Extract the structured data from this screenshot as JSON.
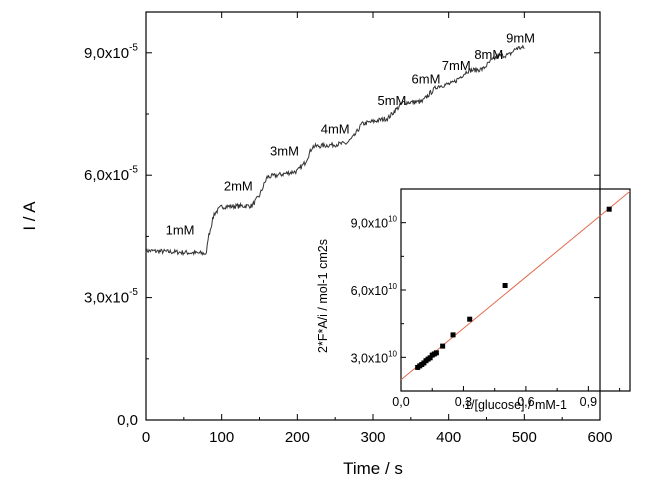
{
  "chart_data": [
    {
      "type": "line",
      "xlabel": "Time / s",
      "ylabel": "I / A",
      "xlim": [
        0,
        600
      ],
      "ylim": [
        0,
        0.0001
      ],
      "xticks": [
        0,
        100,
        200,
        300,
        400,
        500,
        600
      ],
      "xtick_labels": [
        "0",
        "100",
        "200",
        "300",
        "400",
        "500",
        "600"
      ],
      "yticks": [
        0,
        3e-05,
        6e-05,
        9e-05
      ],
      "ytick_labels": [
        {
          "mant": "0,0",
          "exp": ""
        },
        {
          "mant": "3,0x10",
          "exp": "-5"
        },
        {
          "mant": "6,0x10",
          "exp": "-5"
        },
        {
          "mant": "9,0x10",
          "exp": "-5"
        }
      ],
      "series": [
        {
          "x": [
            0,
            80,
            82,
            90,
            100,
            140,
            150,
            160,
            200,
            210,
            220,
            265,
            275,
            285,
            320,
            330,
            340,
            365,
            375,
            385,
            405,
            415,
            425,
            445,
            455,
            465,
            480,
            490,
            500
          ],
          "y": [
            4.15e-05,
            4.08e-05,
            4.45e-05,
            5.05e-05,
            5.23e-05,
            5.25e-05,
            5.5e-05,
            5.95e-05,
            6.1e-05,
            6.3e-05,
            6.7e-05,
            6.78e-05,
            6.95e-05,
            7.25e-05,
            7.4e-05,
            7.6e-05,
            7.78e-05,
            7.8e-05,
            8e-05,
            8.18e-05,
            8.25e-05,
            8.4e-05,
            8.56e-05,
            8.6e-05,
            8.78e-05,
            8.92e-05,
            8.95e-05,
            9.12e-05,
            9.12e-05
          ]
        }
      ],
      "annotations": [
        {
          "text": "1mM",
          "x": 45,
          "y": 4.55e-05
        },
        {
          "text": "2mM",
          "x": 122,
          "y": 5.62e-05
        },
        {
          "text": "3mM",
          "x": 183,
          "y": 6.48e-05
        },
        {
          "text": "4mM",
          "x": 250,
          "y": 7.02e-05
        },
        {
          "text": "5mM",
          "x": 325,
          "y": 7.72e-05
        },
        {
          "text": "6mM",
          "x": 370,
          "y": 8.25e-05
        },
        {
          "text": "7mM",
          "x": 410,
          "y": 8.58e-05
        },
        {
          "text": "8mM",
          "x": 453,
          "y": 8.85e-05
        },
        {
          "text": "9mM",
          "x": 495,
          "y": 9.25e-05
        }
      ]
    },
    {
      "type": "scatter",
      "xlabel": "1/[glucose] / mM-1",
      "ylabel": "2*F*A/i / mol-1 cm2s",
      "xlim": [
        0,
        1.1
      ],
      "ylim": [
        15000000000,
        105000000000
      ],
      "xticks": [
        0,
        0.3,
        0.6,
        0.9
      ],
      "xtick_labels": [
        "0,0",
        "0,3",
        "0,6",
        "0,9"
      ],
      "yticks": [
        30000000000,
        60000000000,
        90000000000
      ],
      "ytick_labels": [
        {
          "mant": "3,0x10",
          "exp": "10"
        },
        {
          "mant": "6,0x10",
          "exp": "10"
        },
        {
          "mant": "9,0x10",
          "exp": "10"
        }
      ],
      "points": {
        "x": [
          0.08,
          0.09,
          0.1,
          0.11,
          0.12,
          0.13,
          0.14,
          0.15,
          0.16,
          0.17,
          0.2,
          0.25,
          0.33,
          0.5,
          1.0
        ],
        "y": [
          25500000000,
          26200000000,
          26800000000,
          27500000000,
          28500000000,
          29200000000,
          29800000000,
          31000000000,
          31500000000,
          32000000000,
          35000000000,
          40000000000,
          47000000000,
          62000000000,
          96000000000
        ]
      },
      "fit": {
        "x": [
          0,
          1.1
        ],
        "y": [
          20000000000,
          104000000000
        ]
      }
    }
  ]
}
